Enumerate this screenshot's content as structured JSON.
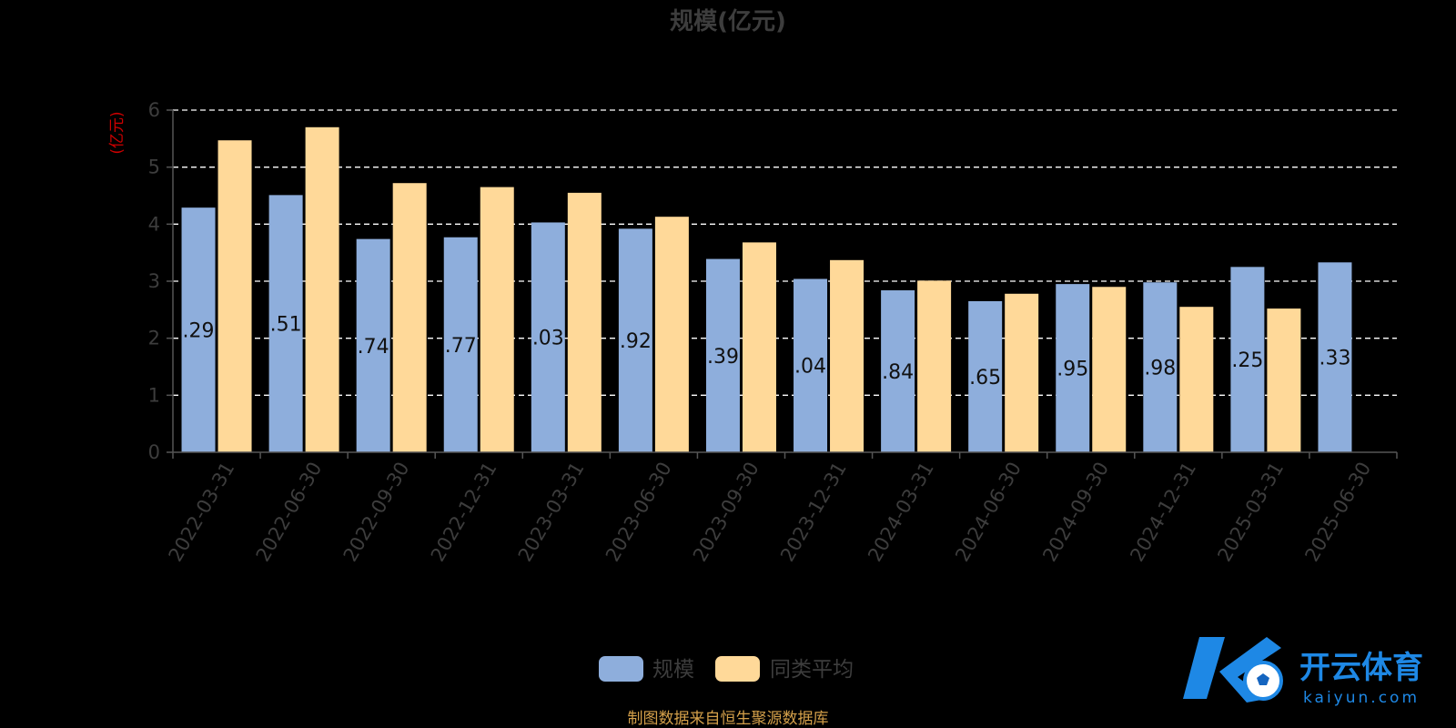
{
  "chart_data": {
    "type": "bar",
    "title": "规模(亿元)",
    "ylabel": "(亿元)",
    "ylim": [
      0,
      6
    ],
    "yticks": [
      "0",
      "1",
      "2",
      "3",
      "4",
      "5",
      "6"
    ],
    "grid": "dashed",
    "legend_position": "bottom",
    "categories": [
      "2022-03-31",
      "2022-06-30",
      "2022-09-30",
      "2022-12-31",
      "2023-03-31",
      "2023-06-30",
      "2023-09-30",
      "2023-12-31",
      "2024-03-31",
      "2024-06-30",
      "2024-09-30",
      "2024-12-31",
      "2025-03-31",
      "2025-06-30"
    ],
    "series": [
      {
        "name": "规模",
        "color": "#8eaedc",
        "values": [
          4.29,
          4.51,
          3.74,
          3.77,
          4.03,
          3.92,
          3.39,
          3.04,
          2.84,
          2.65,
          2.95,
          2.98,
          3.25,
          3.33
        ],
        "data_labels": [
          ".29",
          ".51",
          ".74",
          ".77",
          ".03",
          ".92",
          ".39",
          ".04",
          ".84",
          ".65",
          ".95",
          ".98",
          ".25",
          ".33"
        ]
      },
      {
        "name": "同类平均",
        "color": "#ffd999",
        "values": [
          5.47,
          5.7,
          4.72,
          4.65,
          4.55,
          4.13,
          3.68,
          3.37,
          3.01,
          2.78,
          2.9,
          2.55,
          2.52,
          null
        ]
      }
    ]
  },
  "source_note": "制图数据来自恒生聚源数据库",
  "watermark": {
    "text": "开云体育",
    "url": "kaiyun.com",
    "accent": "#1e88e5"
  }
}
